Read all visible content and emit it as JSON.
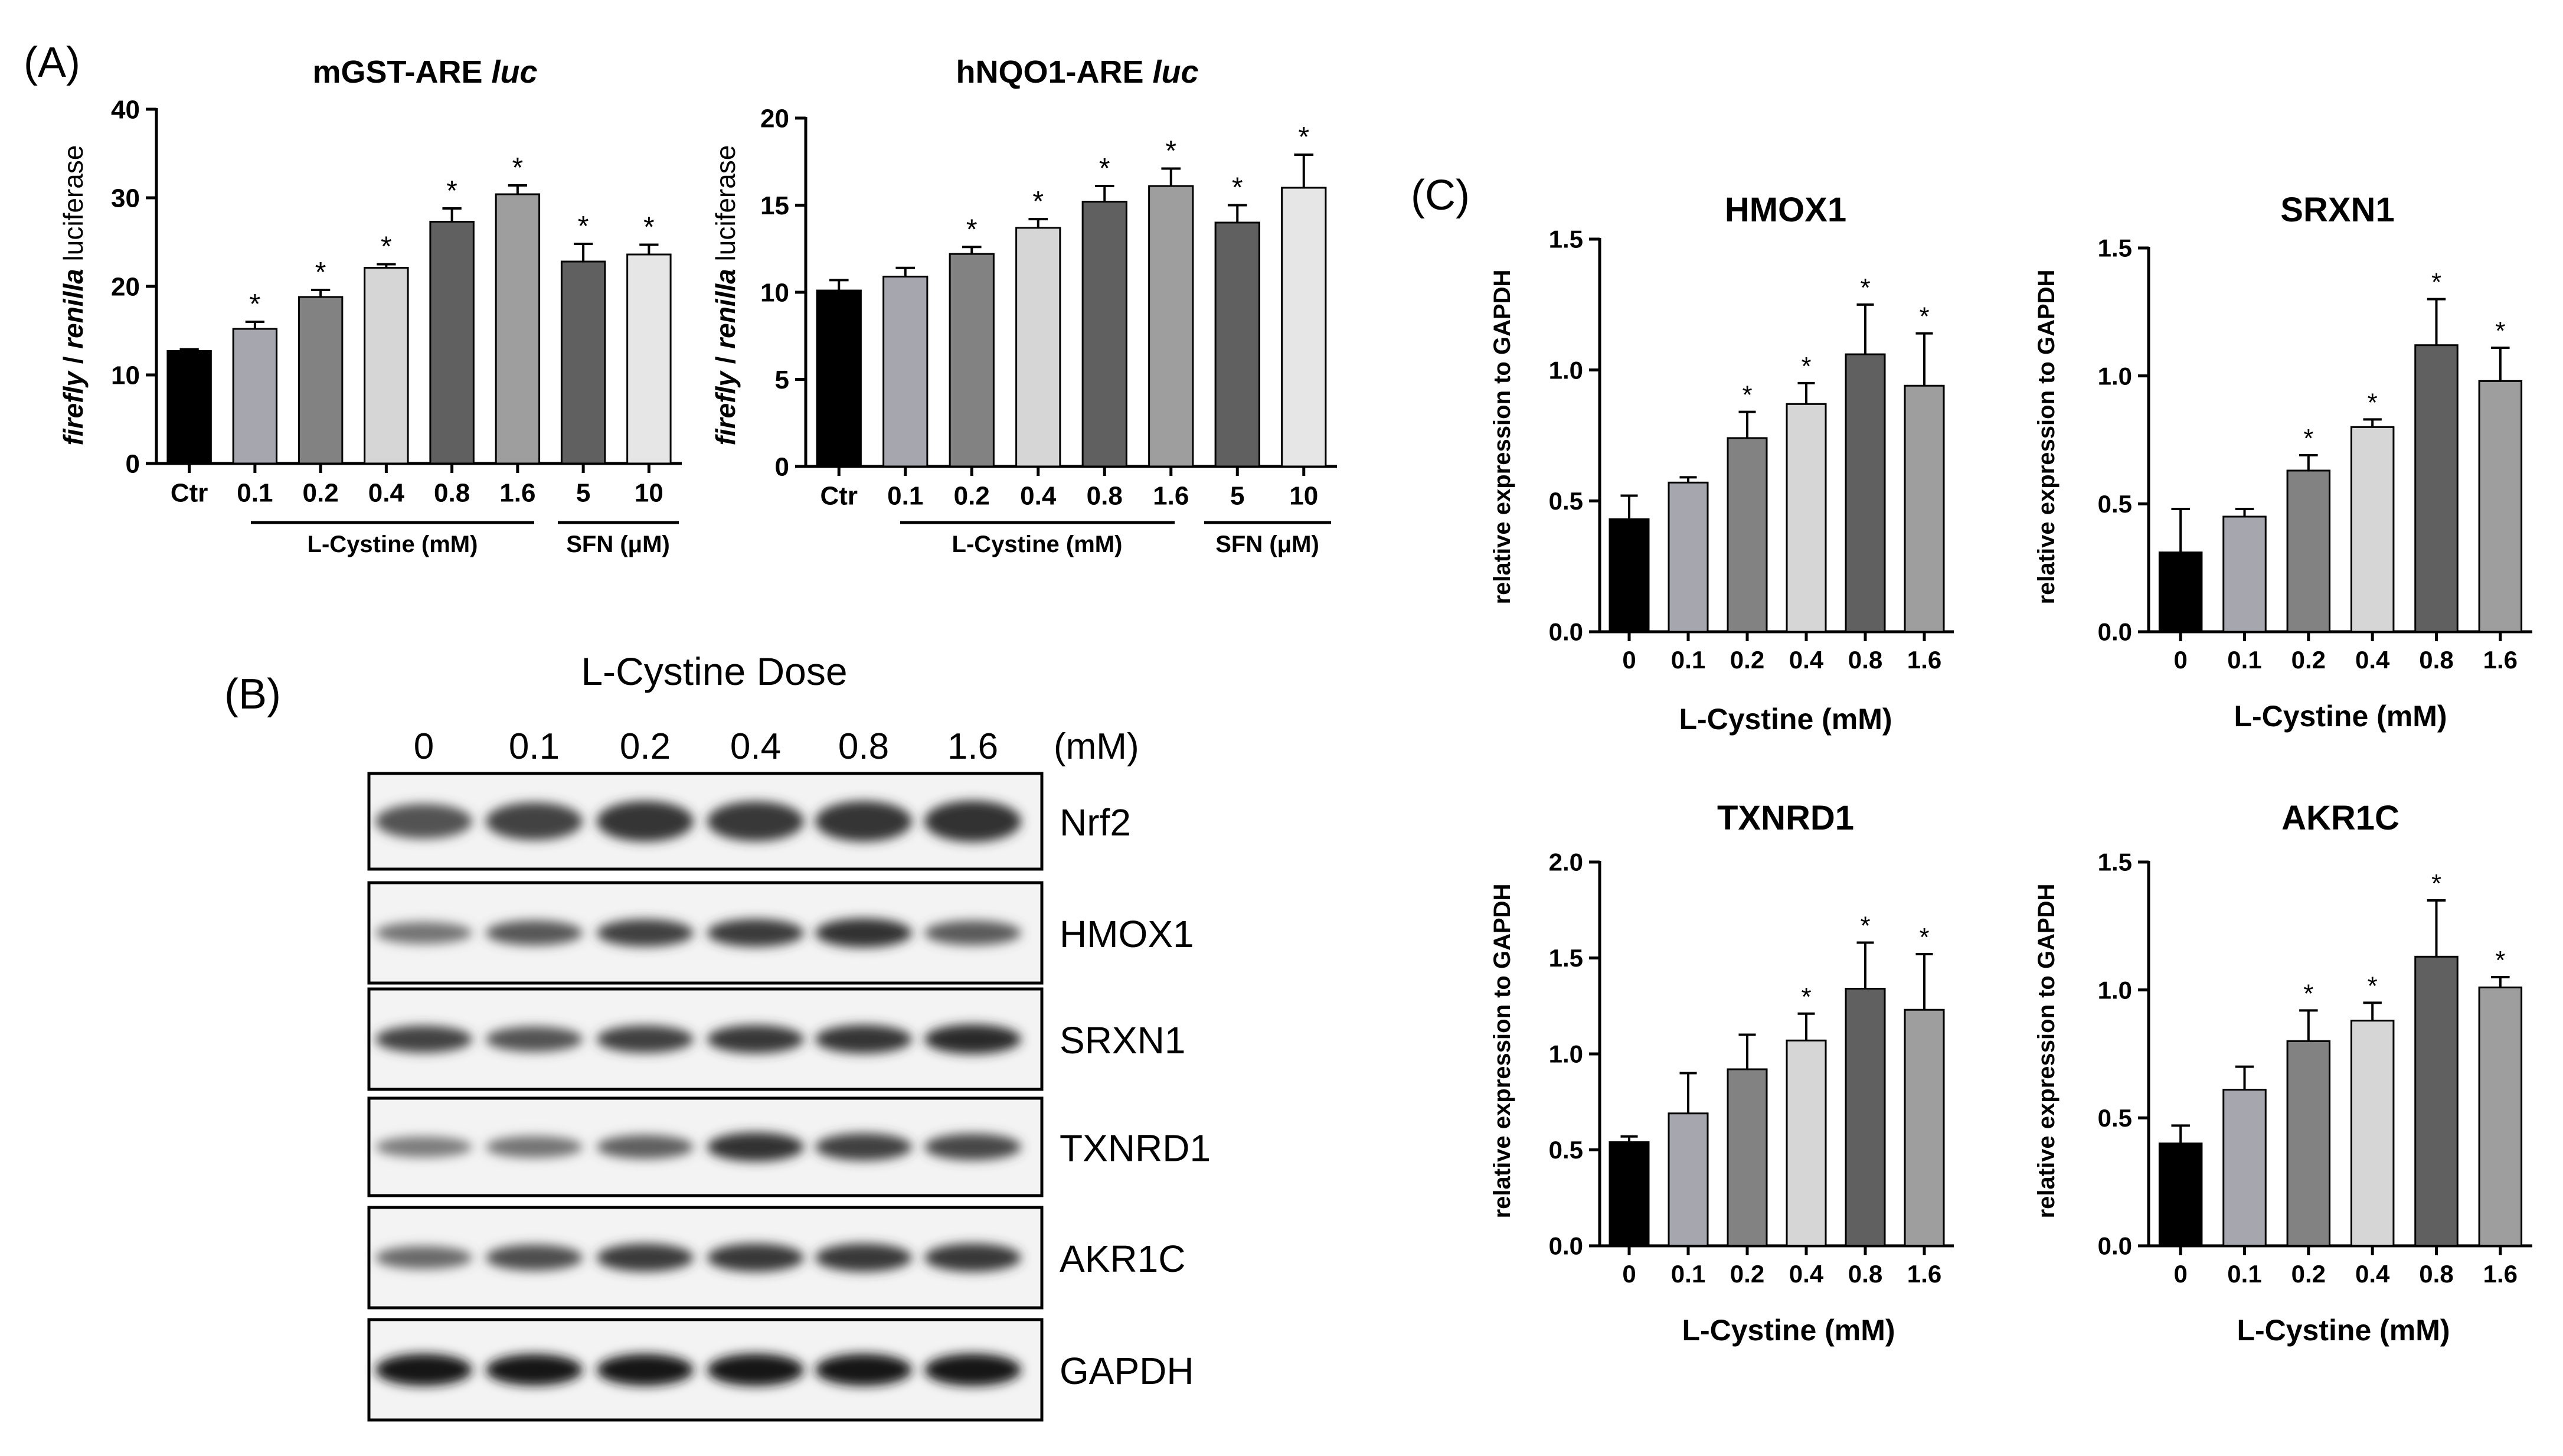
{
  "panel_letters": {
    "a": "(A)",
    "b": "(B)",
    "c": "(C)"
  },
  "colors": {
    "bar_black": "#000000",
    "bar_lightgray": "#a6a6ae",
    "bar_gray": "#828282",
    "bar_verylight": "#d6d6d6",
    "bar_darkgray": "#606060",
    "bar_mediumgray": "#9e9e9e",
    "bar_sfn_paler": "#e6e6e6"
  },
  "panel_a_groups": {
    "cystine_label": "L-Cystine (mM)",
    "sfn_label": "SFN (μM)"
  },
  "chart_data": [
    {
      "type": "bar",
      "title": "mGST-ARE luc",
      "title_main": "mGST-ARE ",
      "title_italic": "luc",
      "ylabel_italic1": "firefly",
      "ylabel_sep": " / ",
      "ylabel_italic2": "renilla",
      "ylabel_rest": " luciferase",
      "categories": [
        "Ctr",
        "0.1",
        "0.2",
        "0.4",
        "0.8",
        "1.6",
        "5",
        "10"
      ],
      "values": [
        12.7,
        15.2,
        18.8,
        22.1,
        27.3,
        30.4,
        22.8,
        23.6
      ],
      "errors": [
        0.2,
        0.8,
        0.8,
        0.4,
        1.5,
        1.0,
        2.0,
        1.1
      ],
      "significance": [
        "",
        "*",
        "*",
        "*",
        "*",
        "*",
        "*",
        "*"
      ],
      "bar_colors": [
        "#000000",
        "#a6a6ae",
        "#828282",
        "#d6d6d6",
        "#606060",
        "#9e9e9e",
        "#606060",
        "#e6e6e6"
      ],
      "yticks": [
        "0",
        "10",
        "20",
        "30",
        "40"
      ],
      "ylim": [
        0,
        40
      ]
    },
    {
      "type": "bar",
      "title": "hNQO1-ARE luc",
      "title_main": "hNQO1-ARE ",
      "title_italic": "luc",
      "ylabel_italic1": "firefly",
      "ylabel_sep": " / ",
      "ylabel_italic2": "renilla",
      "ylabel_rest": " luciferase",
      "categories": [
        "Ctr",
        "0.1",
        "0.2",
        "0.4",
        "0.8",
        "1.6",
        "5",
        "10"
      ],
      "values": [
        10.1,
        10.9,
        12.2,
        13.7,
        15.2,
        16.1,
        14.0,
        16.0
      ],
      "errors": [
        0.6,
        0.5,
        0.4,
        0.5,
        0.9,
        1.0,
        1.0,
        1.9
      ],
      "significance": [
        "",
        "",
        "*",
        "*",
        "*",
        "*",
        "*",
        "*"
      ],
      "bar_colors": [
        "#000000",
        "#a6a6ae",
        "#828282",
        "#d6d6d6",
        "#606060",
        "#9e9e9e",
        "#606060",
        "#e6e6e6"
      ],
      "yticks": [
        "0",
        "5",
        "10",
        "15",
        "20"
      ],
      "ylim": [
        0,
        20
      ]
    },
    {
      "type": "bar",
      "title": "HMOX1",
      "xlabel": "L-Cystine (mM)",
      "ylabel": "relative expression to GAPDH",
      "categories": [
        "0",
        "0.1",
        "0.2",
        "0.4",
        "0.8",
        "1.6"
      ],
      "values": [
        0.43,
        0.57,
        0.74,
        0.87,
        1.06,
        0.94
      ],
      "errors": [
        0.09,
        0.02,
        0.1,
        0.08,
        0.19,
        0.2
      ],
      "significance": [
        "",
        "",
        "*",
        "*",
        "*",
        "*"
      ],
      "bar_colors": [
        "#000000",
        "#a6a6ae",
        "#828282",
        "#d6d6d6",
        "#606060",
        "#9e9e9e"
      ],
      "yticks": [
        "0.0",
        "0.5",
        "1.0",
        "1.5"
      ],
      "ylim": [
        0,
        1.5
      ]
    },
    {
      "type": "bar",
      "title": "SRXN1",
      "xlabel": "L-Cystine (mM)",
      "ylabel": "relative expression to GAPDH",
      "categories": [
        "0",
        "0.1",
        "0.2",
        "0.4",
        "0.8",
        "1.6"
      ],
      "values": [
        0.31,
        0.45,
        0.63,
        0.8,
        1.12,
        0.98
      ],
      "errors": [
        0.17,
        0.03,
        0.06,
        0.03,
        0.18,
        0.13
      ],
      "significance": [
        "",
        "",
        "*",
        "*",
        "*",
        "*"
      ],
      "bar_colors": [
        "#000000",
        "#a6a6ae",
        "#828282",
        "#d6d6d6",
        "#606060",
        "#9e9e9e"
      ],
      "yticks": [
        "0.0",
        "0.5",
        "1.0",
        "1.5"
      ],
      "ylim": [
        0,
        1.5
      ]
    },
    {
      "type": "bar",
      "title": "TXNRD1",
      "xlabel": "L-Cystine (mM)",
      "ylabel": "relative expression to GAPDH",
      "categories": [
        "0",
        "0.1",
        "0.2",
        "0.4",
        "0.8",
        "1.6"
      ],
      "values": [
        0.54,
        0.69,
        0.92,
        1.07,
        1.34,
        1.23
      ],
      "errors": [
        0.03,
        0.21,
        0.18,
        0.14,
        0.24,
        0.29
      ],
      "significance": [
        "",
        "",
        "",
        "*",
        "*",
        "*"
      ],
      "bar_colors": [
        "#000000",
        "#a6a6ae",
        "#828282",
        "#d6d6d6",
        "#606060",
        "#9e9e9e"
      ],
      "yticks": [
        "0.0",
        "0.5",
        "1.0",
        "1.5",
        "2.0"
      ],
      "ylim": [
        0,
        2.0
      ]
    },
    {
      "type": "bar",
      "title": "AKR1C",
      "xlabel": "L-Cystine (mM)",
      "ylabel": "relative expression to GAPDH",
      "categories": [
        "0",
        "0.1",
        "0.2",
        "0.4",
        "0.8",
        "1.6"
      ],
      "values": [
        0.4,
        0.61,
        0.8,
        0.88,
        1.13,
        1.01
      ],
      "errors": [
        0.07,
        0.09,
        0.12,
        0.07,
        0.22,
        0.04
      ],
      "significance": [
        "",
        "",
        "*",
        "*",
        "*",
        "*"
      ],
      "bar_colors": [
        "#000000",
        "#a6a6ae",
        "#828282",
        "#d6d6d6",
        "#606060",
        "#9e9e9e"
      ],
      "yticks": [
        "0.0",
        "0.5",
        "1.0",
        "1.5"
      ],
      "ylim": [
        0,
        1.5
      ]
    }
  ],
  "western_blot": {
    "title": "L-Cystine Dose",
    "doses": [
      "0",
      "0.1",
      "0.2",
      "0.4",
      "0.8",
      "1.6"
    ],
    "unit": "(mM)",
    "rows": [
      {
        "label": "Nrf2",
        "intensity": [
          0.62,
          0.7,
          0.78,
          0.76,
          0.78,
          0.8
        ]
      },
      {
        "label": "HMOX1",
        "intensity": [
          0.45,
          0.6,
          0.72,
          0.74,
          0.8,
          0.58
        ]
      },
      {
        "label": "SRXN1",
        "intensity": [
          0.7,
          0.62,
          0.72,
          0.76,
          0.78,
          0.82
        ]
      },
      {
        "label": "TXNRD1",
        "intensity": [
          0.4,
          0.45,
          0.55,
          0.8,
          0.72,
          0.68
        ]
      },
      {
        "label": "AKR1C",
        "intensity": [
          0.5,
          0.65,
          0.75,
          0.76,
          0.76,
          0.76
        ]
      },
      {
        "label": "GAPDH",
        "intensity": [
          0.95,
          0.92,
          0.94,
          0.96,
          0.95,
          0.96
        ]
      }
    ]
  }
}
